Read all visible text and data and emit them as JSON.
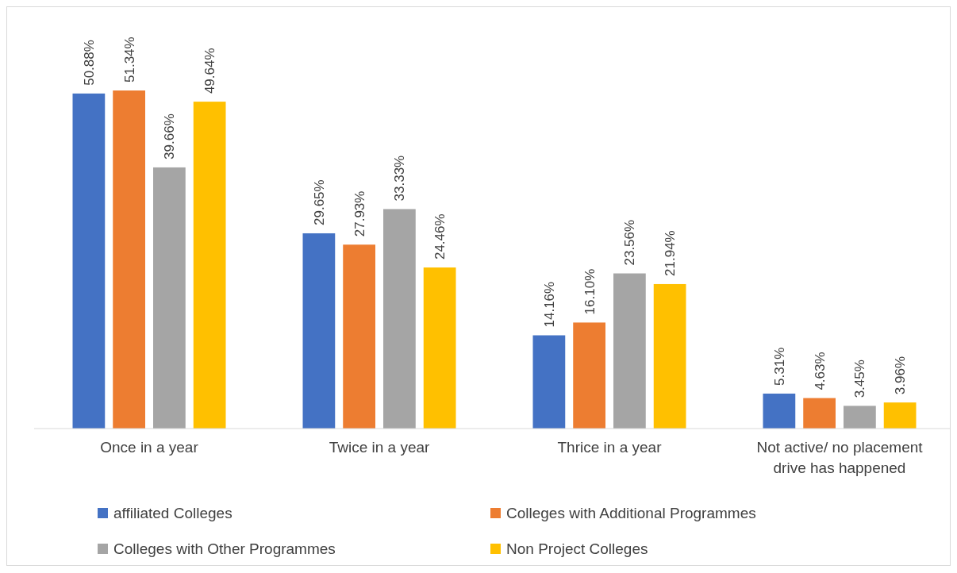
{
  "chart_data": {
    "type": "bar",
    "categories": [
      "Once in a year",
      "Twice in a year",
      "Thrice in a year",
      "Not active/ no placement drive has happened"
    ],
    "series": [
      {
        "name": "affiliated Colleges",
        "color": "#4472c4",
        "values": [
          50.88,
          29.65,
          14.16,
          5.31
        ],
        "value_labels": [
          "50.88%",
          "29.65%",
          "14.16%",
          "5.31%"
        ]
      },
      {
        "name": "Colleges with Additional Programmes",
        "color": "#ed7d31",
        "values": [
          51.34,
          27.93,
          16.1,
          4.63
        ],
        "value_labels": [
          "51.34%",
          "27.93%",
          "16.10%",
          "4.63%"
        ]
      },
      {
        "name": "Colleges with Other Programmes",
        "color": "#a5a5a5",
        "values": [
          39.66,
          33.33,
          23.56,
          3.45
        ],
        "value_labels": [
          "39.66%",
          "33.33%",
          "23.56%",
          "3.45%"
        ]
      },
      {
        "name": "Non Project Colleges",
        "color": "#ffc000",
        "values": [
          49.64,
          24.46,
          21.94,
          3.96
        ],
        "value_labels": [
          "49.64%",
          "24.46%",
          "21.94%",
          "3.96%"
        ]
      }
    ],
    "legend": "bottom"
  }
}
